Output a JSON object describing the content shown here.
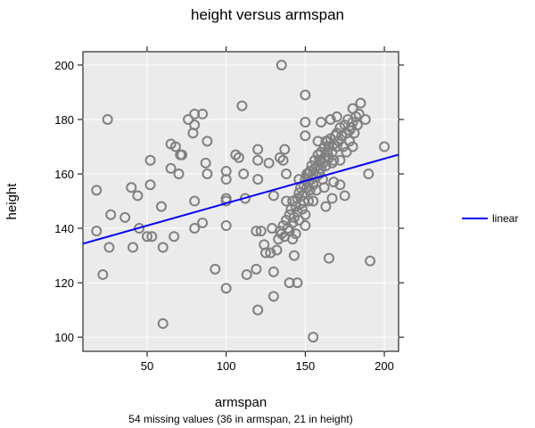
{
  "chart_data": {
    "type": "scatter",
    "title": "height versus armspan",
    "xlabel": "armspan",
    "ylabel": "height",
    "subtitle": "54 missing values (36 in armspan, 21 in height)",
    "xlim": [
      9.4,
      209
    ],
    "ylim": [
      94.8,
      204.9
    ],
    "xticks": [
      50,
      100,
      150,
      200
    ],
    "yticks": [
      100,
      120,
      140,
      160,
      180,
      200
    ],
    "grid": true,
    "legend": {
      "position": "right",
      "entries": [
        {
          "name": "linear",
          "color": "#0000ff"
        }
      ]
    },
    "point_color": "#808080",
    "fit_line": {
      "name": "linear",
      "slope": 0.164,
      "intercept": 132.8,
      "color": "#0000ff"
    },
    "points": [
      [
        25,
        180
      ],
      [
        22,
        123
      ],
      [
        18,
        154
      ],
      [
        18,
        139
      ],
      [
        27,
        145
      ],
      [
        26,
        133
      ],
      [
        36,
        144
      ],
      [
        40,
        155
      ],
      [
        41,
        133
      ],
      [
        44,
        152
      ],
      [
        45,
        140
      ],
      [
        50,
        137
      ],
      [
        52,
        165
      ],
      [
        52,
        156
      ],
      [
        53,
        137
      ],
      [
        59,
        148
      ],
      [
        60,
        133
      ],
      [
        60,
        105
      ],
      [
        65,
        171
      ],
      [
        65,
        162
      ],
      [
        67,
        137
      ],
      [
        68,
        170
      ],
      [
        70,
        160
      ],
      [
        71,
        167
      ],
      [
        72,
        167
      ],
      [
        76,
        180
      ],
      [
        80,
        182
      ],
      [
        80,
        178
      ],
      [
        79,
        175
      ],
      [
        80,
        150
      ],
      [
        80,
        140
      ],
      [
        85,
        182
      ],
      [
        85,
        142
      ],
      [
        87,
        164
      ],
      [
        88,
        172
      ],
      [
        88,
        160
      ],
      [
        93,
        125
      ],
      [
        100,
        161
      ],
      [
        100,
        158
      ],
      [
        100,
        151
      ],
      [
        100,
        150
      ],
      [
        100,
        141
      ],
      [
        100,
        118
      ],
      [
        106,
        167
      ],
      [
        108,
        166
      ],
      [
        110,
        185
      ],
      [
        111,
        160
      ],
      [
        112,
        151
      ],
      [
        113,
        123
      ],
      [
        119,
        139
      ],
      [
        119,
        125
      ],
      [
        120,
        169
      ],
      [
        120,
        165
      ],
      [
        120,
        158
      ],
      [
        120,
        110
      ],
      [
        122,
        139
      ],
      [
        124,
        134
      ],
      [
        125,
        131
      ],
      [
        127,
        164
      ],
      [
        128,
        131
      ],
      [
        129,
        140
      ],
      [
        130,
        115
      ],
      [
        130,
        124
      ],
      [
        130,
        152
      ],
      [
        132,
        132
      ],
      [
        134,
        166
      ],
      [
        135,
        200
      ],
      [
        136,
        165
      ],
      [
        137,
        169
      ],
      [
        138,
        160
      ],
      [
        140,
        120
      ],
      [
        143,
        130
      ],
      [
        145,
        120
      ],
      [
        150,
        189
      ],
      [
        150,
        174
      ],
      [
        150,
        179
      ],
      [
        152,
        160
      ],
      [
        155,
        100
      ],
      [
        160,
        179
      ],
      [
        160,
        165
      ],
      [
        163,
        172
      ],
      [
        163,
        148
      ],
      [
        165,
        129
      ],
      [
        166,
        180
      ],
      [
        167,
        151
      ],
      [
        168,
        157
      ],
      [
        170,
        181
      ],
      [
        172,
        156
      ],
      [
        175,
        152
      ],
      [
        178,
        176
      ],
      [
        180,
        184
      ],
      [
        185,
        186
      ],
      [
        188,
        180
      ],
      [
        190,
        160
      ],
      [
        191,
        128
      ],
      [
        200,
        170
      ],
      [
        133,
        136
      ],
      [
        134,
        139
      ],
      [
        135,
        138
      ],
      [
        136,
        141
      ],
      [
        137,
        137
      ],
      [
        138,
        143
      ],
      [
        139,
        140
      ],
      [
        140,
        145
      ],
      [
        140,
        139
      ],
      [
        141,
        147
      ],
      [
        142,
        142
      ],
      [
        142,
        150
      ],
      [
        143,
        144
      ],
      [
        144,
        148
      ],
      [
        144,
        138
      ],
      [
        145,
        151
      ],
      [
        145,
        146
      ],
      [
        146,
        153
      ],
      [
        146,
        143
      ],
      [
        147,
        149
      ],
      [
        147,
        155
      ],
      [
        148,
        152
      ],
      [
        148,
        147
      ],
      [
        149,
        156
      ],
      [
        149,
        150
      ],
      [
        150,
        158
      ],
      [
        150,
        153
      ],
      [
        150,
        145
      ],
      [
        151,
        155
      ],
      [
        151,
        160
      ],
      [
        152,
        157
      ],
      [
        152,
        150
      ],
      [
        153,
        161
      ],
      [
        153,
        154
      ],
      [
        154,
        158
      ],
      [
        154,
        163
      ],
      [
        155,
        156
      ],
      [
        155,
        160
      ],
      [
        156,
        162
      ],
      [
        156,
        165
      ],
      [
        157,
        159
      ],
      [
        157,
        154
      ],
      [
        158,
        163
      ],
      [
        158,
        167
      ],
      [
        159,
        160
      ],
      [
        159,
        165
      ],
      [
        160,
        162
      ],
      [
        160,
        168
      ],
      [
        161,
        164
      ],
      [
        161,
        158
      ],
      [
        162,
        166
      ],
      [
        162,
        170
      ],
      [
        163,
        163
      ],
      [
        164,
        168
      ],
      [
        164,
        172
      ],
      [
        165,
        166
      ],
      [
        165,
        170
      ],
      [
        166,
        173
      ],
      [
        167,
        168
      ],
      [
        167,
        164
      ],
      [
        168,
        171
      ],
      [
        169,
        174
      ],
      [
        170,
        170
      ],
      [
        170,
        175
      ],
      [
        171,
        172
      ],
      [
        172,
        177
      ],
      [
        173,
        174
      ],
      [
        174,
        170
      ],
      [
        175,
        178
      ],
      [
        176,
        175
      ],
      [
        177,
        180
      ],
      [
        178,
        172
      ],
      [
        179,
        177
      ],
      [
        180,
        179
      ],
      [
        181,
        175
      ],
      [
        182,
        181
      ],
      [
        183,
        178
      ],
      [
        184,
        182
      ],
      [
        138,
        150
      ],
      [
        142,
        136
      ],
      [
        146,
        158
      ],
      [
        150,
        141
      ],
      [
        155,
        150
      ],
      [
        158,
        172
      ],
      [
        162,
        155
      ],
      [
        168,
        165
      ],
      [
        172,
        165
      ],
      [
        176,
        168
      ],
      [
        180,
        170
      ]
    ]
  }
}
